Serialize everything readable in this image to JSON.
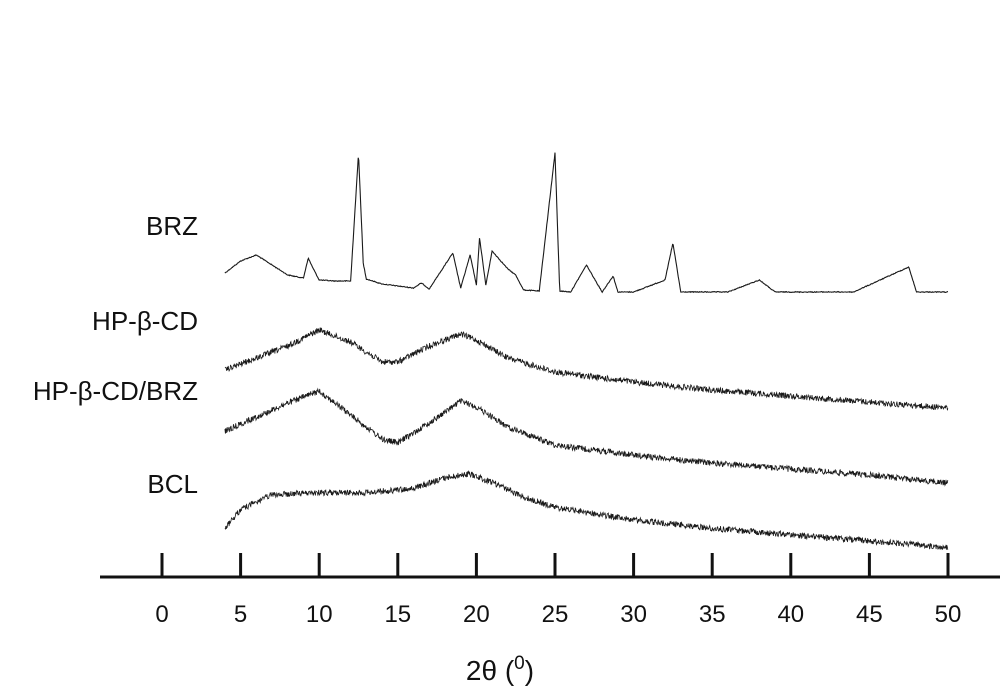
{
  "chart_data": {
    "type": "line",
    "title": "",
    "xlabel": "2θ (",
    "xlabel_sup": "0",
    "xlabel_close": ")",
    "ylabel": "",
    "xlim": [
      -2,
      53
    ],
    "x_ticks": [
      0,
      5,
      10,
      15,
      20,
      25,
      30,
      35,
      40,
      45,
      50
    ],
    "x_tick_labels": [
      "0",
      "5",
      "10",
      "15",
      "20",
      "25",
      "30",
      "35",
      "40",
      "45",
      "50"
    ],
    "y_axis_shown": false,
    "grid": false,
    "legend": "none (series labeled at left of each trace)",
    "line_color": "#1a1a1a",
    "series": [
      {
        "name": "BRZ",
        "x": [
          4,
          5,
          6,
          7,
          8,
          9,
          9.3,
          9.6,
          10,
          11,
          12,
          12.5,
          12.8,
          13,
          14,
          16,
          16.5,
          17,
          18.5,
          19,
          19.6,
          20,
          20.2,
          20.6,
          21,
          22,
          22.5,
          23,
          24,
          25,
          25.3,
          26,
          27,
          28,
          28.7,
          29,
          30,
          32,
          32.5,
          33,
          36,
          38,
          39,
          44,
          47.5,
          48,
          50
        ],
        "y": [
          20,
          32,
          38,
          28,
          18,
          15,
          35,
          25,
          13,
          12,
          12,
          140,
          30,
          14,
          9,
          5,
          10,
          4,
          40,
          5,
          38,
          8,
          55,
          8,
          42,
          24,
          18,
          3,
          2,
          140,
          2,
          1,
          28,
          1,
          17,
          1,
          1,
          13,
          50,
          1,
          1,
          13,
          1,
          1,
          26,
          1,
          1
        ]
      },
      {
        "name": "HP-β-CD",
        "x": [
          4,
          6,
          8,
          10,
          12,
          14,
          15,
          17,
          19,
          20,
          22,
          25,
          30,
          35,
          40,
          45,
          50
        ],
        "y": [
          8,
          14,
          20,
          28,
          22,
          12,
          12,
          20,
          26,
          23,
          14,
          7,
          2,
          -2,
          -5,
          -8,
          -11
        ]
      },
      {
        "name": "HP-β-CD/BRZ",
        "x": [
          4,
          6,
          8,
          10,
          12,
          14,
          15,
          17,
          19,
          20,
          22,
          25,
          30,
          35,
          40,
          45,
          50
        ],
        "y": [
          12,
          19,
          26,
          32,
          20,
          8,
          6,
          16,
          27,
          24,
          14,
          5,
          0,
          -4,
          -7,
          -10,
          -14
        ]
      },
      {
        "name": "BCL",
        "x": [
          4,
          5,
          7,
          10,
          13,
          16,
          18,
          19.5,
          21,
          23,
          25,
          30,
          35,
          40,
          45,
          50
        ],
        "y": [
          -4,
          5,
          12,
          13,
          13,
          15,
          20,
          22,
          18,
          11,
          6,
          0,
          -4,
          -7,
          -10,
          -13
        ]
      }
    ]
  }
}
